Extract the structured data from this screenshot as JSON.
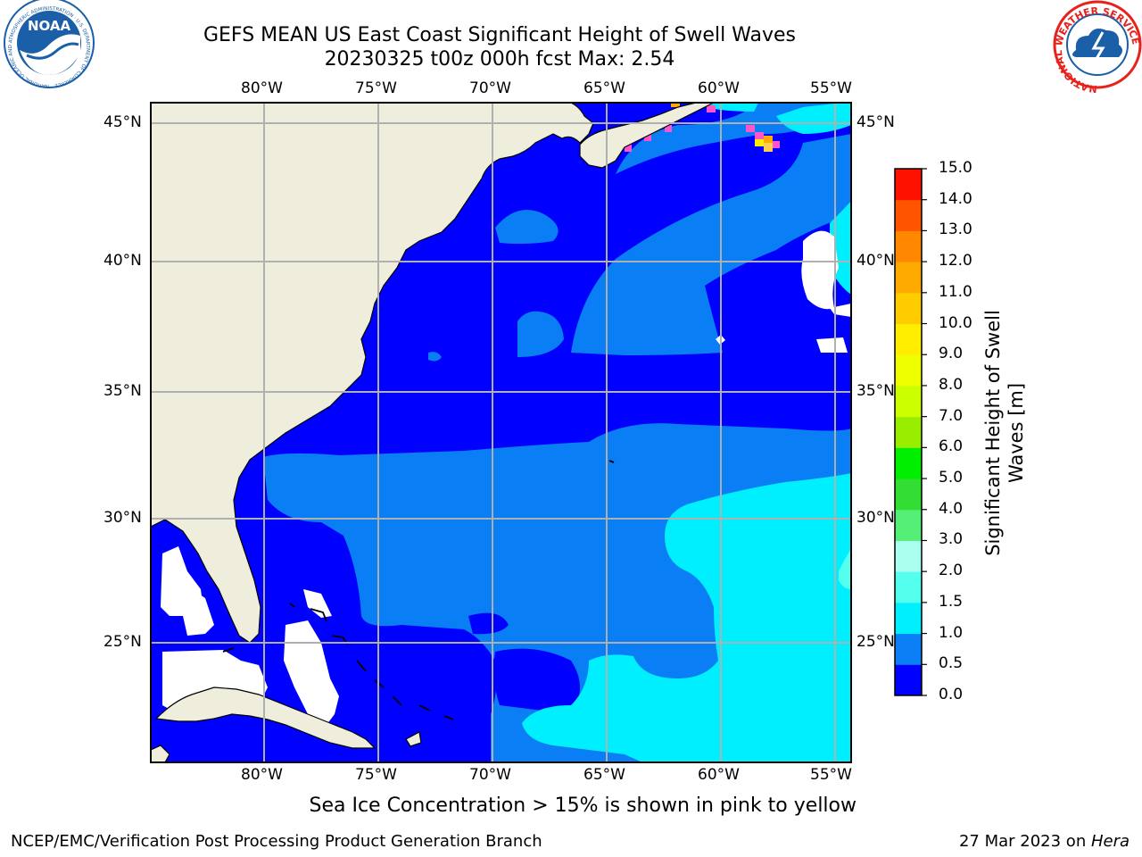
{
  "header": {
    "title_line1": "GEFS MEAN US East Coast Significant Height of Swell Waves",
    "title_line2": "20230325 t00z 000h fcst   Max: 2.54"
  },
  "logos": {
    "left": {
      "name": "noaa-logo",
      "text": "NOAA",
      "ring_text": "NATIONAL OCEANIC AND ATMOSPHERIC ADMINISTRATION · U.S. DEPARTMENT OF COMMERCE",
      "color": "#1a5fa8"
    },
    "right": {
      "name": "nws-logo",
      "ring_text": "NATIONAL WEATHER SERVICE",
      "color": "#e8221b"
    }
  },
  "map": {
    "lon_ticks": [
      "80°W",
      "75°W",
      "70°W",
      "65°W",
      "60°W",
      "55°W"
    ],
    "lat_ticks": [
      "45°N",
      "40°N",
      "35°N",
      "30°N",
      "25°N"
    ],
    "lon_values": [
      -80,
      -75,
      -70,
      -65,
      -60,
      -55
    ],
    "lat_values": [
      45,
      40,
      35,
      30,
      25
    ],
    "extent": {
      "lon_min": -85,
      "lon_max": -55,
      "lat_min": 20,
      "lat_max": 46
    },
    "colors": {
      "land": "#efeedc",
      "gridline": "#b0b0b0",
      "missing": "#ffffff"
    }
  },
  "colorbar": {
    "label": "Significant Height of Swell\nWaves [m]",
    "ticks": [
      "15.0",
      "14.0",
      "13.0",
      "12.0",
      "11.0",
      "10.0",
      "9.0",
      "8.0",
      "7.0",
      "6.0",
      "5.0",
      "4.0",
      "3.0",
      "2.0",
      "1.5",
      "1.0",
      "0.5",
      "0.0"
    ],
    "levels": [
      0.0,
      0.5,
      1.0,
      1.5,
      2.0,
      3.0,
      4.0,
      5.0,
      6.0,
      7.0,
      8.0,
      9.0,
      10.0,
      11.0,
      12.0,
      13.0,
      14.0,
      15.0
    ],
    "colors": [
      "#0000ff",
      "#0a7ff5",
      "#00efff",
      "#55ffee",
      "#aaffee",
      "#55ee77",
      "#33dd33",
      "#00ee00",
      "#99ee00",
      "#ccff00",
      "#eeff00",
      "#ffee00",
      "#ffcc00",
      "#ffaa00",
      "#ff8800",
      "#ff5500",
      "#ff1100"
    ]
  },
  "subtitle": "Sea Ice Concentration > 15% is shown in pink to yellow",
  "footer": {
    "left": "NCEP/EMC/Verification Post Processing Product Generation Branch",
    "right_date": "27 Mar 2023 on ",
    "right_host": "Hera"
  }
}
